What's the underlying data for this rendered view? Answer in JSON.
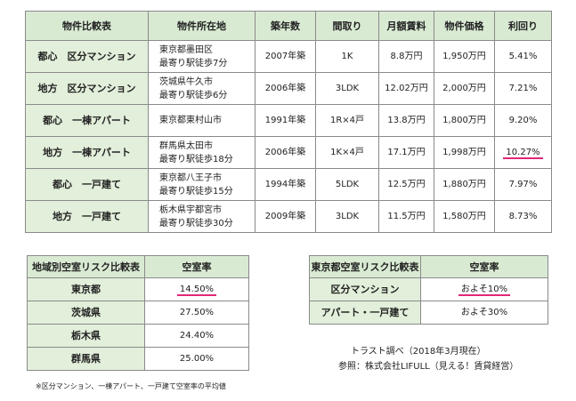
{
  "main_table": {
    "header": [
      "物件比較表",
      "物件所在地",
      "築年数",
      "間取り",
      "月額賃料",
      "物件価格",
      "利回り"
    ],
    "rows": [
      [
        "都心　区分マンション",
        [
          "東京都墨田区",
          "最寄り駅徒歩7分"
        ],
        "2007年築",
        "1K",
        "8.8万円",
        "1,950万円",
        "5.41%"
      ],
      [
        "地方　区分マンション",
        [
          "茨城県牛久市",
          "最寄り駅徒歩6分"
        ],
        "2006年築",
        "3LDK",
        "12.02万円",
        "2,000万円",
        "7.21%"
      ],
      [
        "都心　一棟アパート",
        [
          "東京都東村山市"
        ],
        "1991年築",
        "1R×4戸",
        "13.8万円",
        "1,800万円",
        "9.20%"
      ],
      [
        "地方　一棟アパート",
        [
          "群馬県太田市",
          "最寄り駅徒歩18分"
        ],
        "2006年築",
        "1K×4戸",
        "17.1万円",
        "1,998万円",
        "10.27%"
      ],
      [
        "都心　一戸建て",
        [
          "東京都八王子市",
          "最寄り駅徒歩15分"
        ],
        "1994年築",
        "5LDK",
        "12.5万円",
        "1,880万円",
        "7.97%"
      ],
      [
        "地方　一戸建て",
        [
          "栃木県宇都宮市",
          "最寄り駅徒歩30分"
        ],
        "2009年築",
        "3LDK",
        "11.5万円",
        "1,580万円",
        "8.73%"
      ]
    ]
  },
  "regional_table": {
    "header": [
      "地域別空室リスク比較表",
      "空室率"
    ],
    "rows": [
      [
        "東京都",
        "14.50%"
      ],
      [
        "茨城県",
        "27.50%"
      ],
      [
        "栃木県",
        "24.40%"
      ],
      [
        "群馬県",
        "25.00%"
      ]
    ]
  },
  "tokyo_table": {
    "header": [
      "東京都空室リスク比較表",
      "空室率"
    ],
    "rows": [
      [
        "区分マンション",
        "およそ10%"
      ],
      [
        "アパート・一戸建て",
        "およそ30%"
      ]
    ]
  },
  "notes": [
    "トラスト調べ（2018年3月現在）",
    "参照：株式会社LIFULL（見える！賃貸経営）"
  ],
  "footnote": "※区分マンション、一棟アパート、一戸建て空室率の平均値"
}
